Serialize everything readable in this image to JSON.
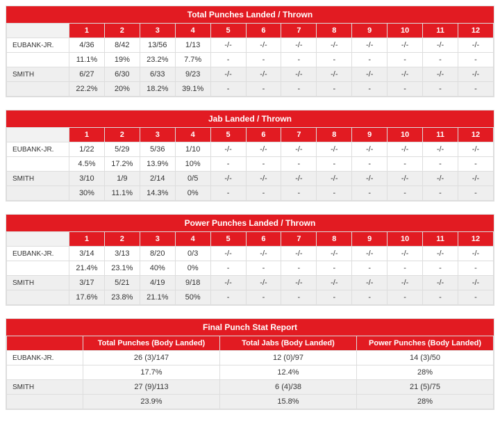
{
  "colors": {
    "accent": "#e21b22",
    "row_alt": "#efefef",
    "border": "#dddddd"
  },
  "rounds": [
    "1",
    "2",
    "3",
    "4",
    "5",
    "6",
    "7",
    "8",
    "9",
    "10",
    "11",
    "12"
  ],
  "fighters": [
    "EUBANK-JR.",
    "SMITH"
  ],
  "sections": [
    {
      "title": "Total Punches Landed / Thrown",
      "rows": [
        {
          "name": "EUBANK-JR.",
          "ratio": [
            "4/36",
            "8/42",
            "13/56",
            "1/13",
            "-/-",
            "-/-",
            "-/-",
            "-/-",
            "-/-",
            "-/-",
            "-/-",
            "-/-"
          ],
          "pct": [
            "11.1%",
            "19%",
            "23.2%",
            "7.7%",
            "-",
            "-",
            "-",
            "-",
            "-",
            "-",
            "-",
            "-"
          ]
        },
        {
          "name": "SMITH",
          "ratio": [
            "6/27",
            "6/30",
            "6/33",
            "9/23",
            "-/-",
            "-/-",
            "-/-",
            "-/-",
            "-/-",
            "-/-",
            "-/-",
            "-/-"
          ],
          "pct": [
            "22.2%",
            "20%",
            "18.2%",
            "39.1%",
            "-",
            "-",
            "-",
            "-",
            "-",
            "-",
            "-",
            "-"
          ]
        }
      ]
    },
    {
      "title": "Jab Landed / Thrown",
      "rows": [
        {
          "name": "EUBANK-JR.",
          "ratio": [
            "1/22",
            "5/29",
            "5/36",
            "1/10",
            "-/-",
            "-/-",
            "-/-",
            "-/-",
            "-/-",
            "-/-",
            "-/-",
            "-/-"
          ],
          "pct": [
            "4.5%",
            "17.2%",
            "13.9%",
            "10%",
            "-",
            "-",
            "-",
            "-",
            "-",
            "-",
            "-",
            "-"
          ]
        },
        {
          "name": "SMITH",
          "ratio": [
            "3/10",
            "1/9",
            "2/14",
            "0/5",
            "-/-",
            "-/-",
            "-/-",
            "-/-",
            "-/-",
            "-/-",
            "-/-",
            "-/-"
          ],
          "pct": [
            "30%",
            "11.1%",
            "14.3%",
            "0%",
            "-",
            "-",
            "-",
            "-",
            "-",
            "-",
            "-",
            "-"
          ]
        }
      ]
    },
    {
      "title": "Power Punches Landed / Thrown",
      "rows": [
        {
          "name": "EUBANK-JR.",
          "ratio": [
            "3/14",
            "3/13",
            "8/20",
            "0/3",
            "-/-",
            "-/-",
            "-/-",
            "-/-",
            "-/-",
            "-/-",
            "-/-",
            "-/-"
          ],
          "pct": [
            "21.4%",
            "23.1%",
            "40%",
            "0%",
            "-",
            "-",
            "-",
            "-",
            "-",
            "-",
            "-",
            "-"
          ]
        },
        {
          "name": "SMITH",
          "ratio": [
            "3/17",
            "5/21",
            "4/19",
            "9/18",
            "-/-",
            "-/-",
            "-/-",
            "-/-",
            "-/-",
            "-/-",
            "-/-",
            "-/-"
          ],
          "pct": [
            "17.6%",
            "23.8%",
            "21.1%",
            "50%",
            "-",
            "-",
            "-",
            "-",
            "-",
            "-",
            "-",
            "-"
          ]
        }
      ]
    }
  ],
  "final": {
    "title": "Final Punch Stat Report",
    "columns": [
      "Total Punches (Body Landed)",
      "Total Jabs (Body Landed)",
      "Power Punches (Body Landed)"
    ],
    "rows": [
      {
        "name": "EUBANK-JR.",
        "vals": [
          "26 (3)/147",
          "12 (0)/97",
          "14 (3)/50"
        ],
        "pct": [
          "17.7%",
          "12.4%",
          "28%"
        ]
      },
      {
        "name": "SMITH",
        "vals": [
          "27 (9)/113",
          "6 (4)/38",
          "21 (5)/75"
        ],
        "pct": [
          "23.9%",
          "15.8%",
          "28%"
        ]
      }
    ]
  }
}
